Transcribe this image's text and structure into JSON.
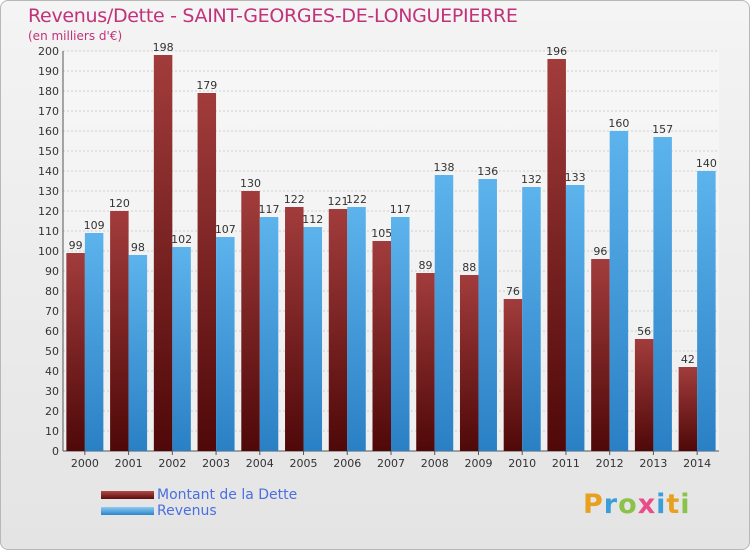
{
  "title": "Revenus/Dette - SAINT-GEORGES-DE-LONGUEPIERRE",
  "subtitle": "(en milliers d'€)",
  "logo": {
    "letters": [
      "P",
      "r",
      "o",
      "x",
      "i",
      "t",
      "i"
    ],
    "colors": [
      "#e8a020",
      "#3a9fd8",
      "#8bc34a",
      "#e84c8b",
      "#3a9fd8",
      "#e8a020",
      "#8bc34a"
    ]
  },
  "chart_data": {
    "type": "bar",
    "categories": [
      "2000",
      "2001",
      "2002",
      "2003",
      "2004",
      "2005",
      "2006",
      "2007",
      "2008",
      "2009",
      "2010",
      "2011",
      "2012",
      "2013",
      "2014"
    ],
    "series": [
      {
        "name": "Montant de la Dette",
        "color": "#7a1c1c",
        "values": [
          99,
          120,
          198,
          179,
          130,
          122,
          121,
          105,
          89,
          88,
          76,
          196,
          96,
          56,
          42
        ]
      },
      {
        "name": "Revenus",
        "color": "#3d9fe0",
        "values": [
          109,
          98,
          102,
          107,
          117,
          112,
          122,
          117,
          138,
          136,
          132,
          133,
          160,
          157,
          140
        ]
      }
    ],
    "ylim": [
      0,
      200
    ],
    "ytick_step": 10,
    "grid": true,
    "legend_position": "bottom-left"
  }
}
